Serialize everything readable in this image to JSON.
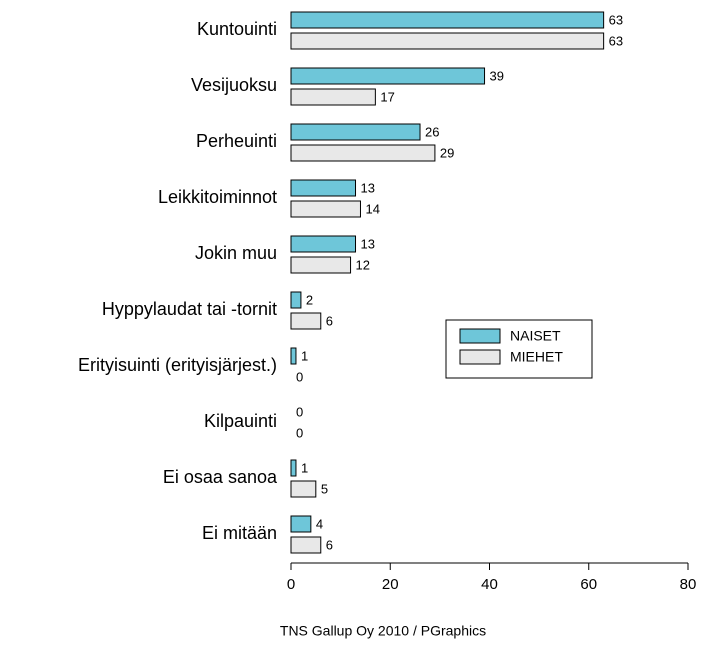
{
  "chart_data": {
    "type": "bar",
    "orientation": "horizontal",
    "categories": [
      "Kuntouinti",
      "Vesijuoksu",
      "Perheuinti",
      "Leikkitoiminnot",
      "Jokin muu",
      "Hyppylaudat tai -tornit",
      "Erityisuinti (erityisjärjest.)",
      "Kilpauinti",
      "Ei osaa sanoa",
      "Ei mitään"
    ],
    "series": [
      {
        "name": "NAISET",
        "color": "#6ec6d9",
        "values": [
          63,
          39,
          26,
          13,
          13,
          2,
          1,
          0,
          1,
          4
        ]
      },
      {
        "name": "MIEHET",
        "color": "#e8e8e8",
        "values": [
          63,
          17,
          29,
          14,
          12,
          6,
          0,
          0,
          5,
          6
        ]
      }
    ],
    "xlim": [
      0,
      80
    ],
    "xticks": [
      0,
      20,
      40,
      60,
      80
    ],
    "legend": "right",
    "source": "TNS Gallup Oy 2010 / PGraphics"
  }
}
